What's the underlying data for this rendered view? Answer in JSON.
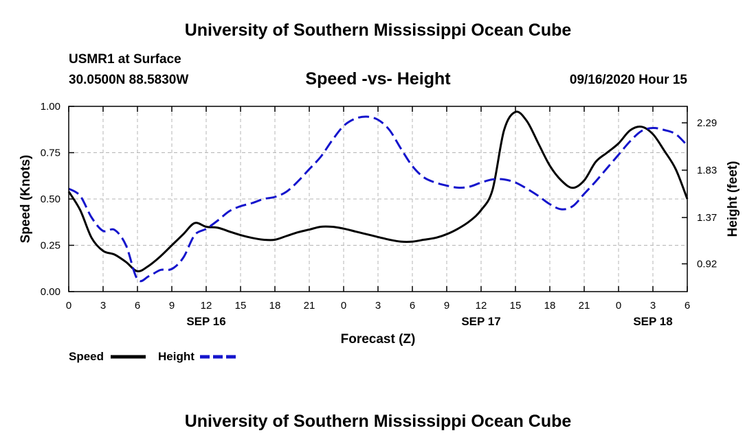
{
  "header": {
    "title": "University of Southern Mississippi Ocean Cube",
    "station": "USMR1 at Surface",
    "coords": "30.0500N 88.5830W",
    "subtitle": "Speed -vs- Height",
    "datetime": "09/16/2020 Hour 15"
  },
  "footer": {
    "title": "University of Southern Mississippi Ocean Cube"
  },
  "legend": {
    "speed_label": "Speed",
    "height_label": "Height"
  },
  "colors": {
    "speed": "#000000",
    "height": "#1414cc",
    "grid": "#b4b4b4"
  },
  "chart_data": {
    "type": "line",
    "title": "Speed -vs- Height",
    "xlabel": "Forecast (Z)",
    "ylabel": "Speed (Knots)",
    "y2label": "Height (feet)",
    "x_unit": "hours since 2020-09-16 00Z",
    "xlim": [
      0,
      54
    ],
    "ylim": [
      0,
      1.0
    ],
    "y2lim": [
      0.65,
      2.45
    ],
    "x_ticks": [
      0,
      3,
      6,
      9,
      12,
      15,
      18,
      21,
      24,
      27,
      30,
      33,
      36,
      39,
      42,
      45,
      48,
      51,
      54
    ],
    "x_tick_labels": [
      "0",
      "3",
      "6",
      "9",
      "12",
      "15",
      "18",
      "21",
      "0",
      "3",
      "6",
      "9",
      "12",
      "15",
      "18",
      "21",
      "0",
      "3",
      "6"
    ],
    "day_labels": [
      {
        "x": 12,
        "label": "SEP 16"
      },
      {
        "x": 36,
        "label": "SEP 17"
      },
      {
        "x": 51,
        "label": "SEP 18"
      }
    ],
    "y_ticks": [
      0,
      0.25,
      0.5,
      0.75,
      1.0
    ],
    "y_tick_labels": [
      "0.00",
      "0.25",
      "0.50",
      "0.75",
      "1.00"
    ],
    "y2_ticks": [
      0.92,
      1.37,
      1.83,
      2.29
    ],
    "y2_tick_labels": [
      "0.92",
      "1.37",
      "1.83",
      "2.29"
    ],
    "grid": true,
    "series": [
      {
        "name": "Speed",
        "axis": "left",
        "style": "solid",
        "x": [
          0,
          1,
          2,
          3,
          4,
          5,
          6,
          7,
          8,
          9,
          10,
          11,
          12,
          13,
          14,
          15,
          16,
          17,
          18,
          19,
          20,
          21,
          22,
          23,
          24,
          25,
          26,
          27,
          28,
          29,
          30,
          31,
          32,
          33,
          34,
          35,
          36,
          37,
          38,
          39,
          40,
          41,
          42,
          43,
          44,
          45,
          46,
          47,
          48,
          49,
          50,
          51,
          52,
          53,
          54
        ],
        "values": [
          0.54,
          0.44,
          0.29,
          0.22,
          0.2,
          0.16,
          0.11,
          0.14,
          0.19,
          0.25,
          0.31,
          0.37,
          0.35,
          0.345,
          0.325,
          0.305,
          0.29,
          0.28,
          0.28,
          0.3,
          0.32,
          0.335,
          0.35,
          0.35,
          0.34,
          0.325,
          0.31,
          0.295,
          0.28,
          0.27,
          0.27,
          0.28,
          0.29,
          0.31,
          0.34,
          0.38,
          0.44,
          0.55,
          0.87,
          0.97,
          0.92,
          0.8,
          0.68,
          0.6,
          0.56,
          0.6,
          0.7,
          0.75,
          0.8,
          0.87,
          0.89,
          0.85,
          0.76,
          0.66,
          0.5
        ]
      },
      {
        "name": "Height",
        "axis": "right",
        "style": "dashed",
        "x": [
          0,
          1,
          2,
          3,
          4,
          5,
          6,
          7,
          8,
          9,
          10,
          11,
          12,
          13,
          14,
          15,
          16,
          17,
          18,
          19,
          20,
          21,
          22,
          23,
          24,
          25,
          26,
          27,
          28,
          29,
          30,
          31,
          32,
          33,
          34,
          35,
          36,
          37,
          38,
          39,
          40,
          41,
          42,
          43,
          44,
          45,
          46,
          47,
          48,
          49,
          50,
          51,
          52,
          53,
          54
        ],
        "values": [
          1.65,
          1.58,
          1.37,
          1.24,
          1.25,
          1.1,
          0.77,
          0.8,
          0.86,
          0.87,
          0.98,
          1.2,
          1.26,
          1.34,
          1.43,
          1.48,
          1.51,
          1.55,
          1.57,
          1.62,
          1.72,
          1.84,
          1.96,
          2.12,
          2.26,
          2.33,
          2.35,
          2.32,
          2.22,
          2.04,
          1.87,
          1.76,
          1.71,
          1.68,
          1.66,
          1.67,
          1.71,
          1.74,
          1.74,
          1.71,
          1.65,
          1.58,
          1.5,
          1.45,
          1.48,
          1.6,
          1.72,
          1.85,
          1.98,
          2.11,
          2.21,
          2.24,
          2.22,
          2.18,
          2.07
        ]
      }
    ]
  }
}
